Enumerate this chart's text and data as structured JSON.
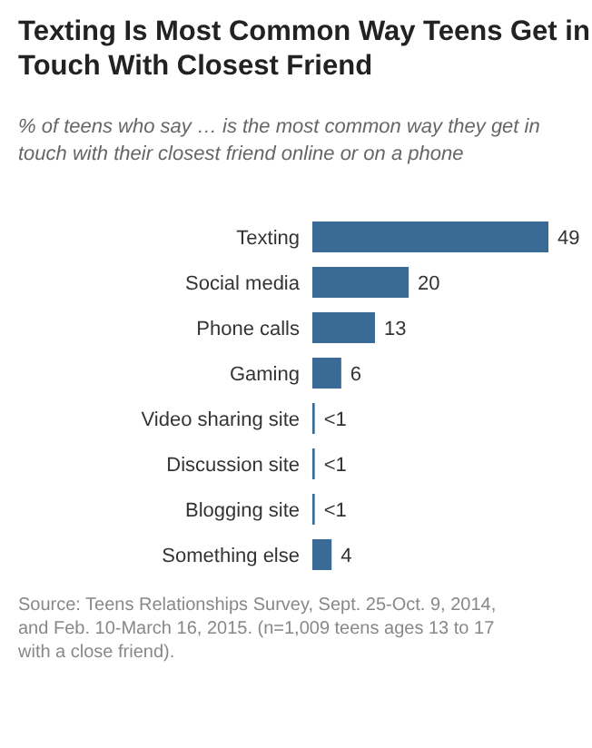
{
  "chart_data": {
    "type": "bar",
    "orientation": "horizontal",
    "title": "Texting Is Most Common Way Teens Get in Touch With Closest Friend",
    "subtitle": "% of teens who say … is the most common way they get in touch with their closest friend online or on a phone",
    "categories": [
      "Texting",
      "Social media",
      "Phone calls",
      "Gaming",
      "Video sharing site",
      "Discussion site",
      "Blogging site",
      "Something else"
    ],
    "values": [
      49,
      20,
      13,
      6,
      0.5,
      0.5,
      0.5,
      4
    ],
    "value_labels": [
      "49",
      "20",
      "13",
      "6",
      "<1",
      "<1",
      "<1",
      "4"
    ],
    "color": "#3a6a96",
    "annotations": [
      "Source: Teens Relationships Survey, Sept. 25-Oct. 9, 2014, and Feb. 10-March 16, 2015. (n=1,009 teens ages 13 to 17 with a close friend)."
    ]
  }
}
